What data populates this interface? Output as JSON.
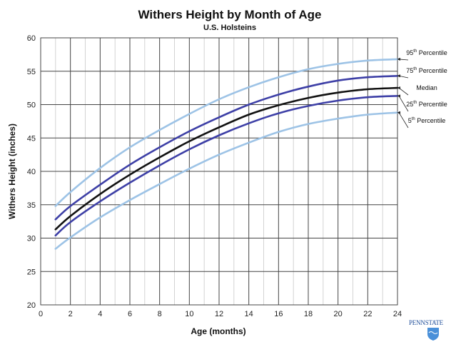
{
  "chart_data": {
    "type": "line",
    "title": "Withers Height by Month of Age",
    "subtitle": "U.S. Holsteins",
    "xlabel": "Age (months)",
    "ylabel": "Withers Height (inches)",
    "xlim": [
      0,
      24
    ],
    "ylim": [
      20,
      60
    ],
    "xticks": [
      0,
      2,
      4,
      6,
      8,
      10,
      12,
      14,
      16,
      18,
      20,
      22,
      24
    ],
    "yticks": [
      20,
      25,
      30,
      35,
      40,
      45,
      50,
      55,
      60
    ],
    "x_minor_step": 1,
    "grid": true,
    "legend_placement": "right",
    "x": [
      1,
      2,
      4,
      6,
      8,
      10,
      12,
      14,
      16,
      18,
      20,
      22,
      24
    ],
    "series": [
      {
        "name": "95",
        "suffix": "th",
        "label": "Percentile",
        "color": "#9dc3e6",
        "values": [
          34.8,
          36.9,
          40.5,
          43.6,
          46.2,
          48.6,
          50.8,
          52.6,
          54.1,
          55.3,
          56.1,
          56.6,
          56.8
        ]
      },
      {
        "name": "75",
        "suffix": "th",
        "label": "Percentile",
        "color": "#3d3fa6",
        "values": [
          32.8,
          34.8,
          38.0,
          41.0,
          43.6,
          46.0,
          48.1,
          50.0,
          51.5,
          52.7,
          53.6,
          54.1,
          54.3
        ]
      },
      {
        "name": "Median",
        "suffix": "",
        "label": "",
        "color": "#111111",
        "values": [
          31.3,
          33.3,
          36.6,
          39.5,
          42.1,
          44.5,
          46.6,
          48.5,
          49.9,
          51.0,
          51.8,
          52.3,
          52.5
        ]
      },
      {
        "name": "25",
        "suffix": "th",
        "label": "Percentile",
        "color": "#3d3fa6",
        "values": [
          30.4,
          32.4,
          35.5,
          38.3,
          40.9,
          43.3,
          45.4,
          47.2,
          48.7,
          49.8,
          50.6,
          51.1,
          51.3
        ]
      },
      {
        "name": "5",
        "suffix": "th",
        "label": "Percentile",
        "color": "#9dc3e6",
        "values": [
          28.4,
          30.1,
          33.1,
          35.7,
          38.1,
          40.4,
          42.5,
          44.3,
          45.9,
          47.1,
          47.9,
          48.5,
          48.8
        ]
      }
    ]
  },
  "logo": {
    "text": "PENNSTATE",
    "icon": "penn-state-shield-icon",
    "color": "#1f4e9a"
  }
}
